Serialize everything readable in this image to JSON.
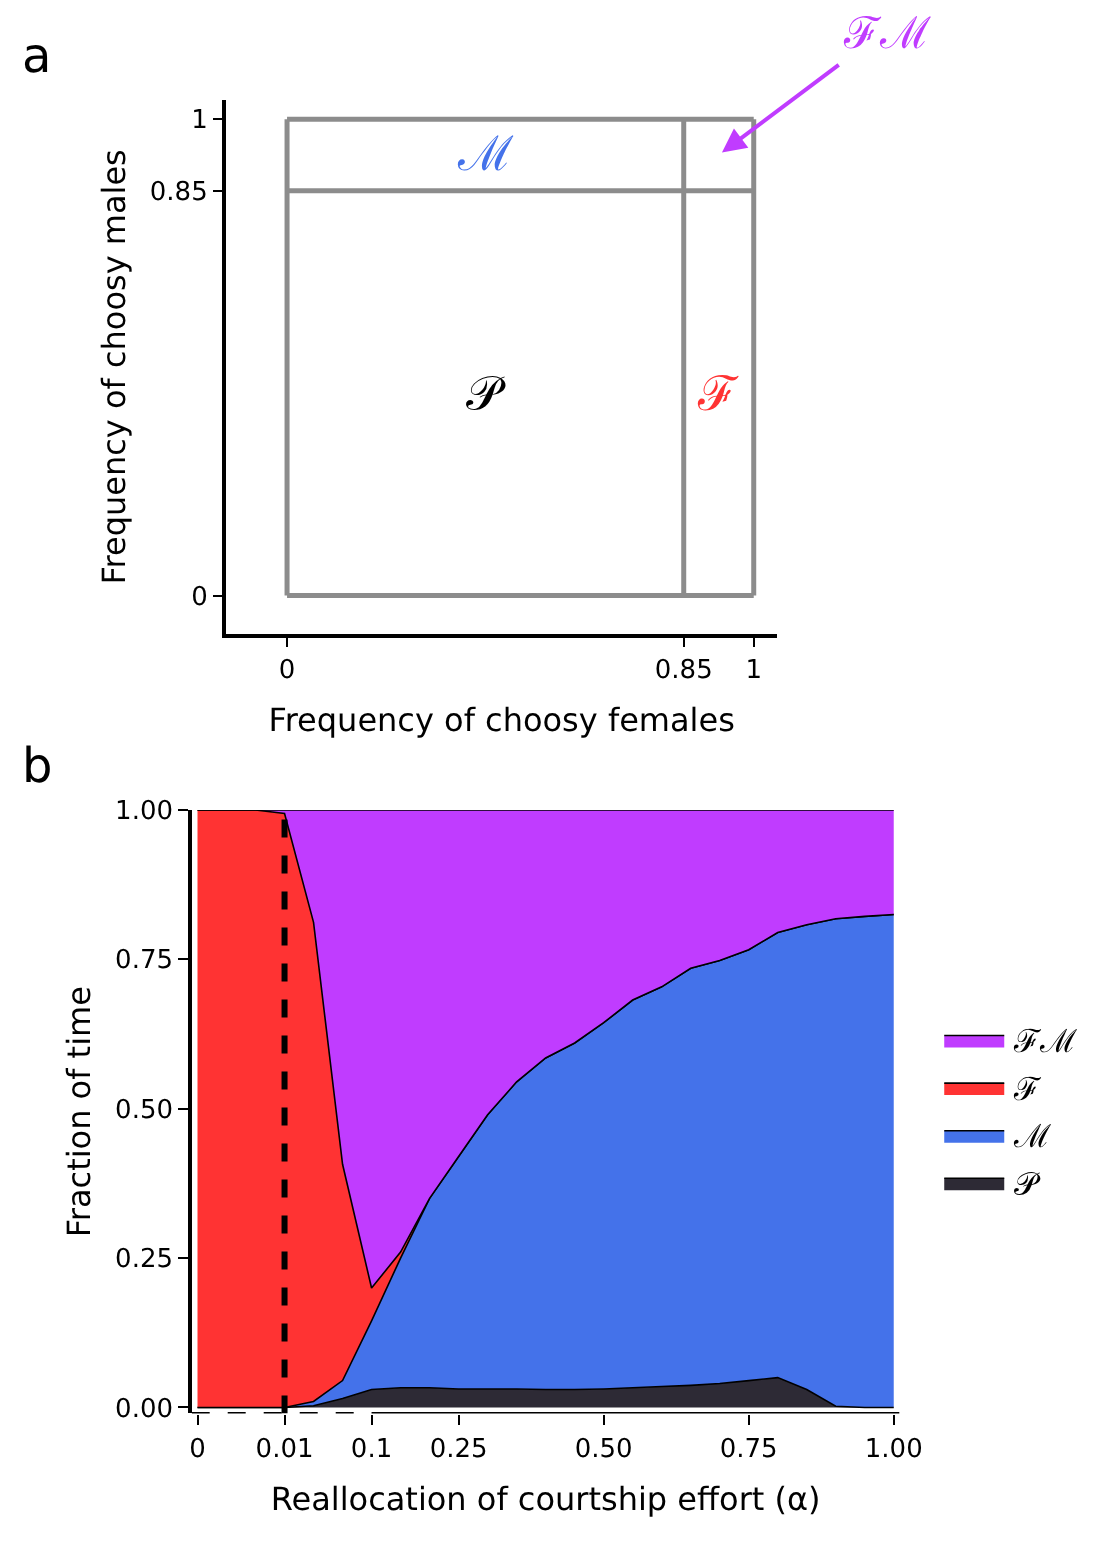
{
  "chart_data": [
    {
      "type": "line",
      "title": "a",
      "xlabel": "Frequency of choosy females",
      "ylabel": "Frequency of choosy males",
      "xlim": [
        -0.13,
        1.05
      ],
      "ylim": [
        -0.08,
        1.04
      ],
      "xticks": [
        0,
        0.85,
        1
      ],
      "yticks": [
        0,
        0.85,
        1
      ],
      "ref_lines": [
        {
          "axis": "x",
          "value": 0,
          "color": "#8c8c8c"
        },
        {
          "axis": "x",
          "value": 0.85,
          "color": "#8c8c8c"
        },
        {
          "axis": "x",
          "value": 1,
          "color": "#8c8c8c"
        },
        {
          "axis": "y",
          "value": 0,
          "color": "#8c8c8c"
        },
        {
          "axis": "y",
          "value": 0.85,
          "color": "#8c8c8c"
        },
        {
          "axis": "y",
          "value": 1,
          "color": "#8c8c8c"
        }
      ],
      "annotations": [
        "𝒫",
        "ℳ",
        "ℱ",
        "ℱℳ"
      ]
    },
    {
      "type": "area",
      "stacked": true,
      "title": "b",
      "xlabel": "Reallocation of courtship effort (α)",
      "ylabel": "Fraction of time",
      "categories": [
        "0",
        null,
        null,
        "0.01",
        null,
        null,
        "0.1",
        null,
        null,
        "0.25",
        null,
        null,
        null,
        null,
        "0.50",
        null,
        null,
        null,
        null,
        "0.75",
        null,
        null,
        null,
        null,
        "1.00"
      ],
      "ylim": [
        -0.01,
        1.0
      ],
      "yticks": [
        {
          "value": 0,
          "label": "0.00"
        },
        {
          "value": 0.25,
          "label": "0.25"
        },
        {
          "value": 0.5,
          "label": "0.50"
        },
        {
          "value": 0.75,
          "label": "0.75"
        },
        {
          "value": 1,
          "label": "1.00"
        }
      ],
      "legend": "right",
      "ref_lines": [
        {
          "axis": "x",
          "value": "0.01",
          "color": "#000000",
          "line_style": "dashed"
        }
      ],
      "series": [
        {
          "name": "𝒫",
          "color": "#2d2a35",
          "values": [
            0,
            0,
            0,
            0,
            0.003,
            0.015,
            0.03,
            0.033,
            0.033,
            0.031,
            0.031,
            0.031,
            0.03,
            0.03,
            0.031,
            0.033,
            0.035,
            0.037,
            0.04,
            0.045,
            0.05,
            0.03,
            0.002,
            0,
            0
          ]
        },
        {
          "name": "ℳ",
          "color": "#4472ea",
          "values": [
            0,
            0,
            0,
            0,
            0.007,
            0.03,
            0.115,
            0.217,
            0.317,
            0.389,
            0.459,
            0.514,
            0.555,
            0.58,
            0.613,
            0.649,
            0.669,
            0.698,
            0.708,
            0.721,
            0.745,
            0.778,
            0.816,
            0.822,
            0.825
          ]
        },
        {
          "name": "ℱ",
          "color": "#ff3333",
          "values": [
            1,
            1,
            1,
            0.994,
            0.802,
            0.362,
            0.055,
            0.01,
            0,
            0,
            0,
            0,
            0,
            0,
            0,
            0,
            0,
            0,
            0,
            0,
            0,
            0,
            0,
            0,
            0
          ]
        },
        {
          "name": "ℱℳ",
          "color": "#c03cff",
          "values": [
            0,
            0,
            0,
            0.006,
            0.188,
            0.593,
            0.8,
            0.74,
            0.65,
            0.58,
            0.51,
            0.455,
            0.415,
            0.39,
            0.356,
            0.318,
            0.296,
            0.265,
            0.252,
            0.234,
            0.205,
            0.192,
            0.182,
            0.178,
            0.175
          ]
        }
      ]
    }
  ]
}
